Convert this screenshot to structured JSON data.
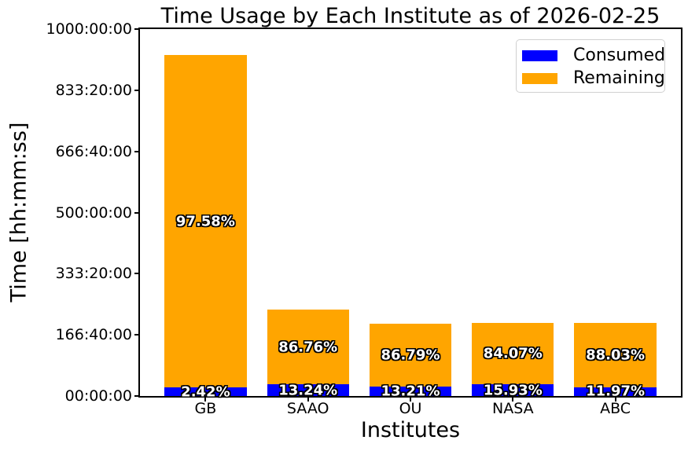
{
  "chart_data": {
    "type": "bar",
    "stacked": true,
    "title": "Time Usage by Each Institute as of 2026-02-25",
    "xlabel": "Institutes",
    "ylabel": "Time [hh:mm:ss]",
    "categories": [
      "GB",
      "SAAO",
      "OU",
      "NASA",
      "ABC"
    ],
    "series": [
      {
        "name": "Consumed",
        "color": "#0000ff",
        "values_hours": [
          22.5,
          31.2,
          26.1,
          31.7,
          23.9
        ],
        "percent_labels": [
          "2.42%",
          "13.24%",
          "13.21%",
          "15.93%",
          "11.97%"
        ]
      },
      {
        "name": "Remaining",
        "color": "#ffa500",
        "values_hours": [
          906.9,
          204.3,
          171.5,
          167.4,
          175.9
        ],
        "percent_labels": [
          "97.58%",
          "86.76%",
          "86.79%",
          "84.07%",
          "88.03%"
        ]
      }
    ],
    "totals_hours": [
      929.4,
      235.5,
      197.6,
      199.1,
      199.8
    ],
    "ylim": [
      0,
      1000
    ],
    "xlim": [
      -0.64,
      4.64
    ],
    "bar_width": 0.8,
    "yticks": [
      {
        "value": 0,
        "label": "00:00:00"
      },
      {
        "value": 166.6667,
        "label": "166:40:00"
      },
      {
        "value": 333.3333,
        "label": "333:20:00"
      },
      {
        "value": 500,
        "label": "500:00:00"
      },
      {
        "value": 666.6667,
        "label": "666:40:00"
      },
      {
        "value": 833.3333,
        "label": "833:20:00"
      },
      {
        "value": 1000,
        "label": "1000:00:00"
      }
    ],
    "legend_position": "upper right",
    "grid": false,
    "text_color": "#000000",
    "background_color": "#ffffff",
    "bar_label_text_color": "#ffffff",
    "bar_label_outline_color": "#000000"
  }
}
